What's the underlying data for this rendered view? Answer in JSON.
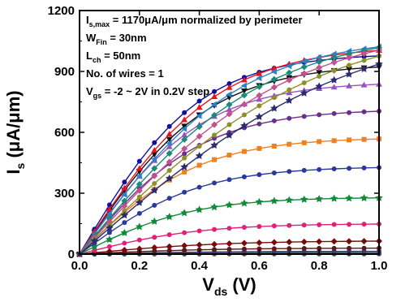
{
  "chart_data": {
    "type": "line",
    "xlabel": "V",
    "xlabel_sub": "ds",
    "xlabel_unit": " (V)",
    "ylabel": "I",
    "ylabel_sub": "s",
    "ylabel_unit": " (μA/μm)",
    "xlim": [
      0,
      1
    ],
    "ylim": [
      0,
      1200
    ],
    "xticks": [
      0.0,
      0.2,
      0.4,
      0.6,
      0.8,
      1.0
    ],
    "xtick_labels": [
      "0.0",
      "0.2",
      "0.4",
      "0.6",
      "0.8",
      "1.0"
    ],
    "yticks": [
      0,
      300,
      600,
      900,
      1200
    ],
    "ytick_labels": [
      "0",
      "300",
      "600",
      "900",
      "1200"
    ],
    "grid": false,
    "legend": "none",
    "annotations": [
      {
        "main": "I",
        "sub": "s,max",
        "rest": " = 1170μA/μm normalized by perimeter"
      },
      {
        "main": "W",
        "sub": "Fin",
        "rest": " = 30nm"
      },
      {
        "main": "L",
        "sub": "ch",
        "rest": " = 50nm"
      },
      {
        "main": "No. of wires = 1",
        "sub": "",
        "rest": ""
      },
      {
        "main": "V",
        "sub": "gs",
        "rest": " = -2 ~ 2V in 0.2V step"
      }
    ],
    "x": [
      0.0,
      0.05,
      0.1,
      0.15,
      0.2,
      0.25,
      0.3,
      0.35,
      0.4,
      0.45,
      0.5,
      0.55,
      0.6,
      0.65,
      0.7,
      0.75,
      0.8,
      0.85,
      0.9,
      0.95,
      1.0
    ],
    "series": [
      {
        "color": "#2b2b6e",
        "marker": "star",
        "isat": 1170,
        "k": 1.1
      },
      {
        "color": "#8f8f2a",
        "marker": "circle",
        "isat": 1150,
        "k": 1.25
      },
      {
        "color": "#c4508f",
        "marker": "diamond",
        "isat": 1130,
        "k": 1.42
      },
      {
        "color": "#1a8a7a",
        "marker": "diamond",
        "isat": 1100,
        "k": 1.62
      },
      {
        "color": "#2b80c8",
        "marker": "triangle-left",
        "isat": 1070,
        "k": 1.88
      },
      {
        "color": "#e8121e",
        "marker": "triangle-up",
        "isat": 1030,
        "k": 2.18
      },
      {
        "color": "#1010a0",
        "marker": "circle",
        "isat": 990,
        "k": 2.5
      },
      {
        "color": "#111111",
        "marker": "triangle-down",
        "isat": 940,
        "k": 2.32
      },
      {
        "color": "#9a52c0",
        "marker": "triangle-up",
        "isat": 850,
        "k": 2.43
      },
      {
        "color": "#6a2f8a",
        "marker": "circle",
        "isat": 715,
        "k": 2.43
      },
      {
        "color": "#ee8020",
        "marker": "square",
        "isat": 575,
        "k": 2.5
      },
      {
        "color": "#2a3a9a",
        "marker": "circle",
        "isat": 432,
        "k": 2.51
      },
      {
        "color": "#128a3a",
        "marker": "star",
        "isat": 280,
        "k": 2.62
      },
      {
        "color": "#e0207a",
        "marker": "circle",
        "isat": 150,
        "k": 2.5
      },
      {
        "color": "#7a0a0a",
        "marker": "diamond",
        "isat": 66,
        "k": 2.1
      },
      {
        "color": "#5a1a1a",
        "marker": "circle",
        "isat": 30,
        "k": 2.2
      },
      {
        "color": "#3a3a7a",
        "marker": "circle",
        "isat": 14,
        "k": 2.2
      },
      {
        "color": "#2a6a6a",
        "marker": "circle",
        "isat": 8,
        "k": 2.2
      },
      {
        "color": "#555555",
        "marker": "circle",
        "isat": 4,
        "k": 2.2
      },
      {
        "color": "#333333",
        "marker": "circle",
        "isat": 2,
        "k": 2.2
      },
      {
        "color": "#222222",
        "marker": "circle",
        "isat": 1,
        "k": 2.2
      }
    ]
  }
}
